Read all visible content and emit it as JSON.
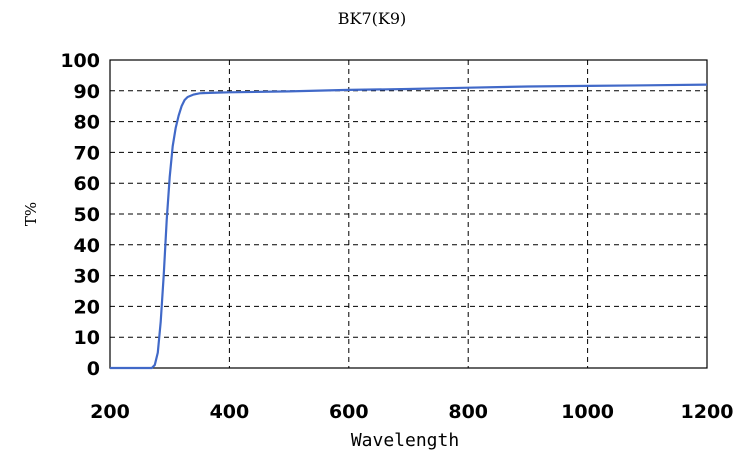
{
  "chart_data": {
    "type": "line",
    "title": "BK7(K9)",
    "xlabel": "Wavelength",
    "ylabel": "T%",
    "xlim": [
      200,
      1200
    ],
    "ylim": [
      0,
      100
    ],
    "x_ticks": [
      200,
      400,
      600,
      800,
      1000,
      1200
    ],
    "y_ticks": [
      0,
      10,
      20,
      30,
      40,
      50,
      60,
      70,
      80,
      90,
      100
    ],
    "grid": true,
    "colors": {
      "line": "#4169c8"
    },
    "series": [
      {
        "x": [
          200,
          270,
          275,
          280,
          285,
          290,
          295,
          300,
          305,
          310,
          315,
          320,
          325,
          330,
          340,
          350,
          360,
          380,
          400,
          500,
          600,
          700,
          800,
          900,
          1000,
          1100,
          1200
        ],
        "y": [
          0,
          0,
          1,
          5,
          15,
          30,
          48,
          62,
          72,
          78,
          82,
          85,
          87,
          88,
          88.8,
          89.2,
          89.3,
          89.4,
          89.5,
          89.8,
          90.3,
          90.6,
          91.0,
          91.4,
          91.6,
          91.8,
          92.0
        ]
      }
    ]
  }
}
